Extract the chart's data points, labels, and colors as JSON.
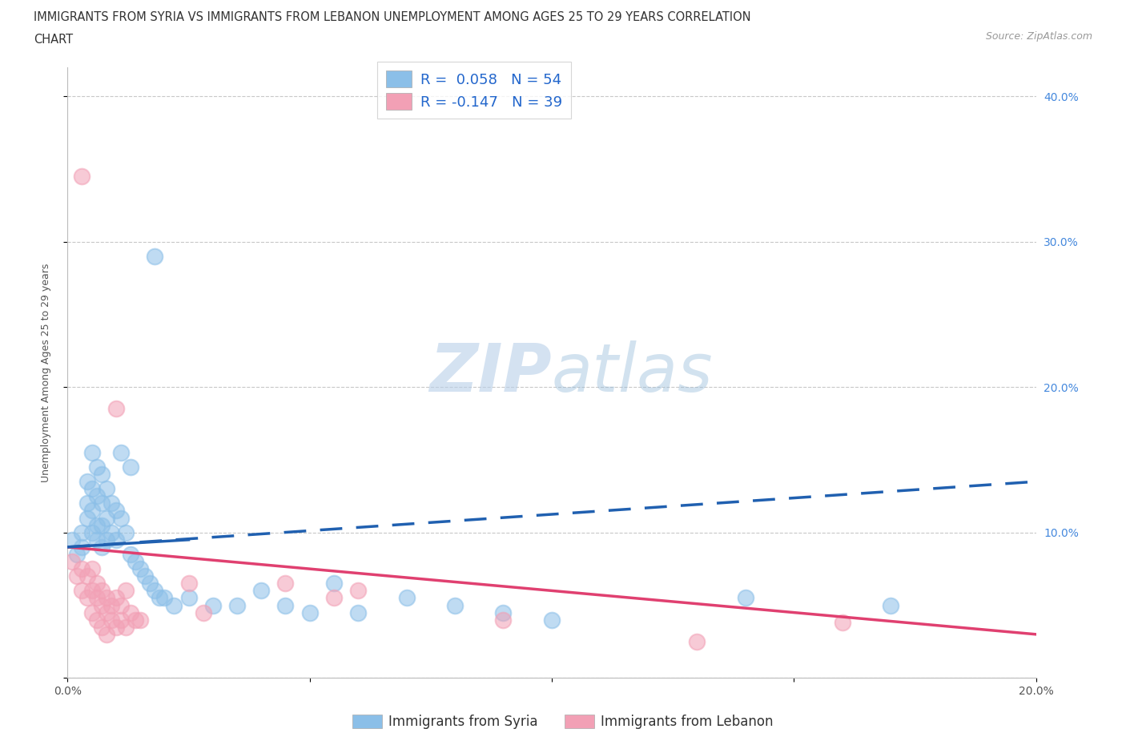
{
  "title_line1": "IMMIGRANTS FROM SYRIA VS IMMIGRANTS FROM LEBANON UNEMPLOYMENT AMONG AGES 25 TO 29 YEARS CORRELATION",
  "title_line2": "CHART",
  "source": "Source: ZipAtlas.com",
  "ylabel": "Unemployment Among Ages 25 to 29 years",
  "xlim": [
    0.0,
    0.2
  ],
  "ylim": [
    0.0,
    0.42
  ],
  "x_ticks": [
    0.0,
    0.05,
    0.1,
    0.15,
    0.2
  ],
  "x_tick_labels": [
    "0.0%",
    "",
    "",
    "",
    "20.0%"
  ],
  "y_ticks": [
    0.0,
    0.1,
    0.2,
    0.3,
    0.4
  ],
  "y_tick_labels_right": [
    "",
    "10.0%",
    "20.0%",
    "30.0%",
    "40.0%"
  ],
  "grid_color": "#c8c8c8",
  "background_color": "#ffffff",
  "legend_R_syria": "0.058",
  "legend_N_syria": "54",
  "legend_R_lebanon": "-0.147",
  "legend_N_lebanon": "39",
  "syria_color": "#8bbfe8",
  "lebanon_color": "#f2a0b5",
  "syria_line_color": "#2060b0",
  "lebanon_line_color": "#e04070",
  "syria_scatter": [
    [
      0.001,
      0.095
    ],
    [
      0.002,
      0.085
    ],
    [
      0.003,
      0.1
    ],
    [
      0.003,
      0.09
    ],
    [
      0.004,
      0.135
    ],
    [
      0.004,
      0.12
    ],
    [
      0.004,
      0.11
    ],
    [
      0.005,
      0.155
    ],
    [
      0.005,
      0.13
    ],
    [
      0.005,
      0.115
    ],
    [
      0.005,
      0.1
    ],
    [
      0.006,
      0.145
    ],
    [
      0.006,
      0.125
    ],
    [
      0.006,
      0.105
    ],
    [
      0.006,
      0.095
    ],
    [
      0.007,
      0.14
    ],
    [
      0.007,
      0.12
    ],
    [
      0.007,
      0.105
    ],
    [
      0.007,
      0.09
    ],
    [
      0.008,
      0.13
    ],
    [
      0.008,
      0.11
    ],
    [
      0.008,
      0.095
    ],
    [
      0.009,
      0.12
    ],
    [
      0.009,
      0.1
    ],
    [
      0.01,
      0.115
    ],
    [
      0.01,
      0.095
    ],
    [
      0.011,
      0.155
    ],
    [
      0.011,
      0.11
    ],
    [
      0.012,
      0.1
    ],
    [
      0.013,
      0.145
    ],
    [
      0.013,
      0.085
    ],
    [
      0.014,
      0.08
    ],
    [
      0.015,
      0.075
    ],
    [
      0.016,
      0.07
    ],
    [
      0.017,
      0.065
    ],
    [
      0.018,
      0.29
    ],
    [
      0.018,
      0.06
    ],
    [
      0.019,
      0.055
    ],
    [
      0.02,
      0.055
    ],
    [
      0.022,
      0.05
    ],
    [
      0.025,
      0.055
    ],
    [
      0.03,
      0.05
    ],
    [
      0.035,
      0.05
    ],
    [
      0.04,
      0.06
    ],
    [
      0.045,
      0.05
    ],
    [
      0.05,
      0.045
    ],
    [
      0.055,
      0.065
    ],
    [
      0.06,
      0.045
    ],
    [
      0.07,
      0.055
    ],
    [
      0.08,
      0.05
    ],
    [
      0.09,
      0.045
    ],
    [
      0.1,
      0.04
    ],
    [
      0.14,
      0.055
    ],
    [
      0.17,
      0.05
    ]
  ],
  "lebanon_scatter": [
    [
      0.001,
      0.08
    ],
    [
      0.002,
      0.07
    ],
    [
      0.003,
      0.075
    ],
    [
      0.003,
      0.06
    ],
    [
      0.004,
      0.07
    ],
    [
      0.004,
      0.055
    ],
    [
      0.005,
      0.075
    ],
    [
      0.005,
      0.06
    ],
    [
      0.005,
      0.045
    ],
    [
      0.006,
      0.065
    ],
    [
      0.006,
      0.055
    ],
    [
      0.006,
      0.04
    ],
    [
      0.007,
      0.06
    ],
    [
      0.007,
      0.05
    ],
    [
      0.007,
      0.035
    ],
    [
      0.008,
      0.055
    ],
    [
      0.008,
      0.045
    ],
    [
      0.008,
      0.03
    ],
    [
      0.009,
      0.05
    ],
    [
      0.009,
      0.04
    ],
    [
      0.01,
      0.055
    ],
    [
      0.01,
      0.035
    ],
    [
      0.011,
      0.05
    ],
    [
      0.011,
      0.04
    ],
    [
      0.012,
      0.06
    ],
    [
      0.012,
      0.035
    ],
    [
      0.013,
      0.045
    ],
    [
      0.014,
      0.04
    ],
    [
      0.015,
      0.04
    ],
    [
      0.003,
      0.345
    ],
    [
      0.01,
      0.185
    ],
    [
      0.025,
      0.065
    ],
    [
      0.028,
      0.045
    ],
    [
      0.045,
      0.065
    ],
    [
      0.055,
      0.055
    ],
    [
      0.06,
      0.06
    ],
    [
      0.09,
      0.04
    ],
    [
      0.13,
      0.025
    ],
    [
      0.16,
      0.038
    ]
  ],
  "syria_line_x": [
    0.0,
    0.2
  ],
  "syria_line_y": [
    0.09,
    0.135
  ],
  "lebanon_line_x": [
    0.0,
    0.2
  ],
  "lebanon_line_y": [
    0.09,
    0.03
  ]
}
